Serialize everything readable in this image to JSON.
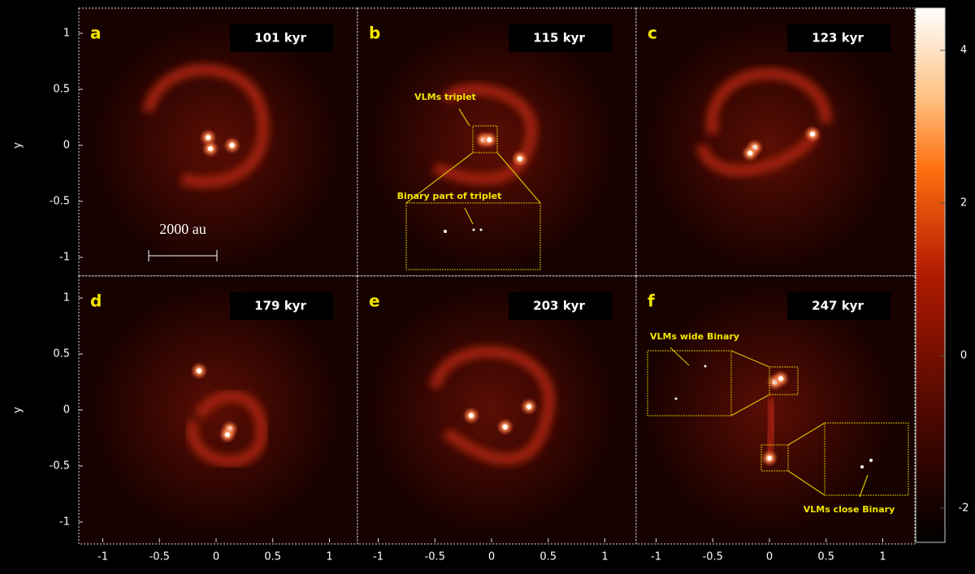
{
  "panels": [
    {
      "letter": "a",
      "time": "101 kyr"
    },
    {
      "letter": "b",
      "time": "115 kyr"
    },
    {
      "letter": "c",
      "time": "123 kyr"
    },
    {
      "letter": "d",
      "time": "179 kyr"
    },
    {
      "letter": "e",
      "time": "203 kyr"
    },
    {
      "letter": "f",
      "time": "247 kyr"
    }
  ],
  "axes": {
    "ylabel": "y",
    "xticks": [
      -1,
      -0.5,
      0,
      0.5,
      1
    ],
    "yticks": [
      1,
      0.5,
      0,
      -0.5,
      -1
    ]
  },
  "colorbar": {
    "ticks": [
      4,
      2,
      0,
      -2
    ]
  },
  "annotations": {
    "scale_bar": "2000 au",
    "triplet": "VLMs triplet",
    "binary_part": "Binary part of triplet",
    "wide_binary": "VLMs wide Binary",
    "close_binary": "VLMs close Binary"
  }
}
